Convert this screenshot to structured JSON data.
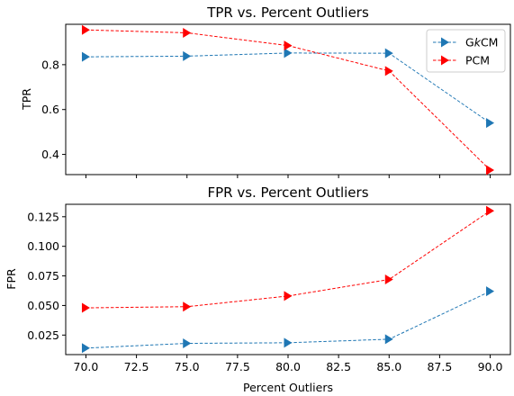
{
  "chart_data": [
    {
      "type": "line",
      "title": "TPR vs. Percent Outliers",
      "xlabel": "",
      "ylabel": "TPR",
      "x": [
        70,
        75,
        80,
        85,
        90
      ],
      "xlim": [
        69.0,
        91.0
      ],
      "ylim": [
        0.31,
        0.98
      ],
      "xticks": [
        70.0,
        72.5,
        75.0,
        77.5,
        80.0,
        82.5,
        85.0,
        87.5,
        90.0
      ],
      "yticks": [
        0.4,
        0.6,
        0.8
      ],
      "ytick_labels": [
        "0.4",
        "0.6",
        "0.8"
      ],
      "show_xtick_labels": false,
      "grid": false,
      "legend": "top-right",
      "series": [
        {
          "name": "GkCM",
          "legend_prefix": "G",
          "legend_italic": "k",
          "legend_suffix": "CM",
          "color": "#1f77b4",
          "values": [
            0.835,
            0.838,
            0.852,
            0.851,
            0.54
          ]
        },
        {
          "name": "PCM",
          "legend_prefix": "PCM",
          "legend_italic": "",
          "legend_suffix": "",
          "color": "#ff0000",
          "values": [
            0.955,
            0.942,
            0.885,
            0.772,
            0.33
          ]
        }
      ]
    },
    {
      "type": "line",
      "title": "FPR vs. Percent Outliers",
      "xlabel": "Percent Outliers",
      "ylabel": "FPR",
      "x": [
        70,
        75,
        80,
        85,
        90
      ],
      "xlim": [
        69.0,
        91.0
      ],
      "ylim": [
        0.0085,
        0.1355
      ],
      "xticks": [
        70.0,
        72.5,
        75.0,
        77.5,
        80.0,
        82.5,
        85.0,
        87.5,
        90.0
      ],
      "xtick_labels": [
        "70.0",
        "72.5",
        "75.0",
        "77.5",
        "80.0",
        "82.5",
        "85.0",
        "87.5",
        "90.0"
      ],
      "yticks": [
        0.025,
        0.05,
        0.075,
        0.1,
        0.125
      ],
      "ytick_labels": [
        "0.025",
        "0.050",
        "0.075",
        "0.100",
        "0.125"
      ],
      "show_xtick_labels": true,
      "grid": false,
      "series": [
        {
          "name": "GkCM",
          "color": "#1f77b4",
          "values": [
            0.014,
            0.018,
            0.0185,
            0.0215,
            0.062
          ]
        },
        {
          "name": "PCM",
          "color": "#ff0000",
          "values": [
            0.048,
            0.049,
            0.058,
            0.072,
            0.13
          ]
        }
      ]
    }
  ]
}
